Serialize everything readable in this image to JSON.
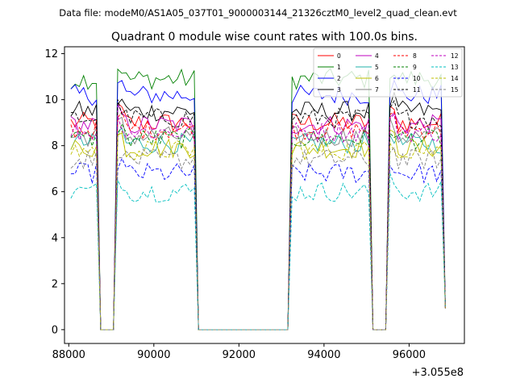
{
  "chart_data": {
    "type": "line",
    "suptitle": "Data file: modeM0/AS1A05_037T01_9000003144_21326cztM0_level2_quad_clean.evt",
    "title": "Quadrant 0 module wise count rates with 100.0s bins.",
    "xlabel": "",
    "ylabel": "",
    "x_offset_label": "+3.055e8",
    "xlim": [
      87900,
      97300
    ],
    "ylim": [
      -0.6,
      12.3
    ],
    "xticks": [
      88000,
      90000,
      92000,
      94000,
      96000
    ],
    "yticks": [
      0,
      2,
      4,
      6,
      8,
      10,
      12
    ],
    "segments": [
      {
        "start": 88050,
        "end": 88650
      },
      {
        "start": 89100,
        "end": 90950
      },
      {
        "start": 93200,
        "end": 95050
      },
      {
        "start": 95550,
        "end": 96750
      }
    ],
    "x_range": [
      88050,
      96850
    ],
    "series": [
      {
        "name": "0",
        "color": "#ff0000",
        "dash": "solid",
        "level": 9.0
      },
      {
        "name": "1",
        "color": "#008000",
        "dash": "solid",
        "level": 10.9
      },
      {
        "name": "2",
        "color": "#0000ff",
        "dash": "solid",
        "level": 10.2
      },
      {
        "name": "3",
        "color": "#000000",
        "dash": "solid",
        "level": 9.5
      },
      {
        "name": "4",
        "color": "#bf00bf",
        "dash": "solid",
        "level": 8.9
      },
      {
        "name": "5",
        "color": "#20b2aa",
        "dash": "solid",
        "level": 8.1
      },
      {
        "name": "6",
        "color": "#bfbf00",
        "dash": "solid",
        "level": 7.9
      },
      {
        "name": "7",
        "color": "#808080",
        "dash": "solid",
        "level": 8.4
      },
      {
        "name": "8",
        "color": "#ff0000",
        "dash": "dashed",
        "level": 8.7
      },
      {
        "name": "9",
        "color": "#008000",
        "dash": "dashed",
        "level": 8.3
      },
      {
        "name": "10",
        "color": "#0000ff",
        "dash": "dashed",
        "level": 6.8
      },
      {
        "name": "11",
        "color": "#000000",
        "dash": "dashed",
        "level": 9.2
      },
      {
        "name": "12",
        "color": "#bf00bf",
        "dash": "dashed",
        "level": 8.6
      },
      {
        "name": "13",
        "color": "#00bfbf",
        "dash": "dashed",
        "level": 6.0
      },
      {
        "name": "14",
        "color": "#bfbf00",
        "dash": "dashed",
        "level": 7.8
      },
      {
        "name": "15",
        "color": "#808080",
        "dash": "dashed",
        "level": 7.4
      }
    ]
  }
}
